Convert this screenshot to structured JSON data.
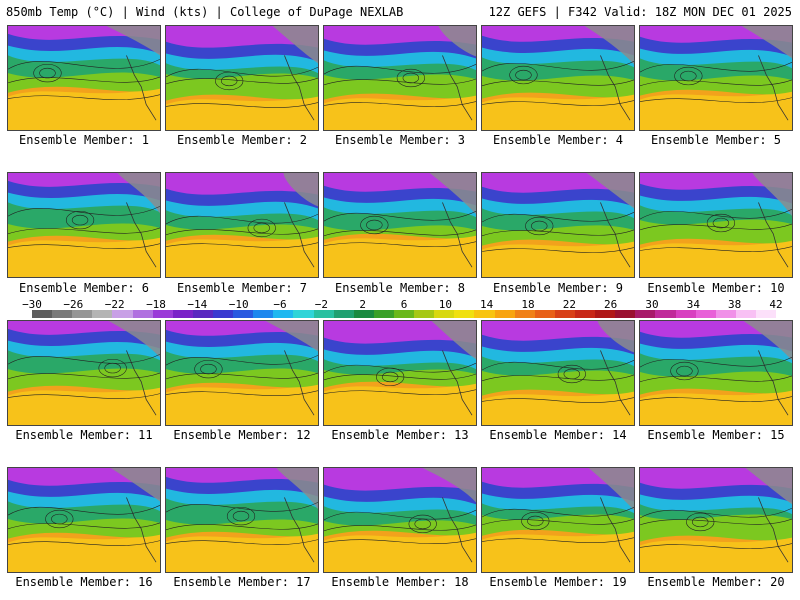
{
  "header": {
    "left": "850mb Temp (°C) | Wind (kts) | College of DuPage NEXLAB",
    "right": "12Z GEFS | F342 Valid: 18Z MON DEC 01 2025"
  },
  "colorbar": {
    "labels": [
      "−30",
      "−26",
      "−22",
      "−18",
      "−14",
      "−10",
      "−6",
      "−2",
      "2",
      "6",
      "10",
      "14",
      "18",
      "22",
      "26",
      "30",
      "34",
      "38",
      "42"
    ],
    "colors": [
      "#5e5e5e",
      "#7a7a7a",
      "#969696",
      "#b4b4b4",
      "#c8a0e6",
      "#b070e0",
      "#9a3ad8",
      "#7a22c8",
      "#5a28c0",
      "#3a3ad0",
      "#2a5ae0",
      "#1e88ee",
      "#20b8f0",
      "#30d4d8",
      "#28c0a0",
      "#20a070",
      "#1a8a40",
      "#3aa028",
      "#6ab81a",
      "#a6c814",
      "#d8d810",
      "#f0e010",
      "#f8c410",
      "#f8a410",
      "#f08018",
      "#e86018",
      "#d84018",
      "#c82818",
      "#b01818",
      "#9a1030",
      "#a81a6a",
      "#c02a9a",
      "#d840c0",
      "#e860d8",
      "#f090e8",
      "#f8c0f4",
      "#fce0fa"
    ]
  },
  "members": [
    {
      "label": "Ensemble Member: 1"
    },
    {
      "label": "Ensemble Member: 2"
    },
    {
      "label": "Ensemble Member: 3"
    },
    {
      "label": "Ensemble Member: 4"
    },
    {
      "label": "Ensemble Member: 5"
    },
    {
      "label": "Ensemble Member: 6"
    },
    {
      "label": "Ensemble Member: 7"
    },
    {
      "label": "Ensemble Member: 8"
    },
    {
      "label": "Ensemble Member: 9"
    },
    {
      "label": "Ensemble Member: 10"
    },
    {
      "label": "Ensemble Member: 11"
    },
    {
      "label": "Ensemble Member: 12"
    },
    {
      "label": "Ensemble Member: 13"
    },
    {
      "label": "Ensemble Member: 14"
    },
    {
      "label": "Ensemble Member: 15"
    },
    {
      "label": "Ensemble Member: 16"
    },
    {
      "label": "Ensemble Member: 17"
    },
    {
      "label": "Ensemble Member: 18"
    },
    {
      "label": "Ensemble Member: 19"
    },
    {
      "label": "Ensemble Member: 20"
    }
  ]
}
